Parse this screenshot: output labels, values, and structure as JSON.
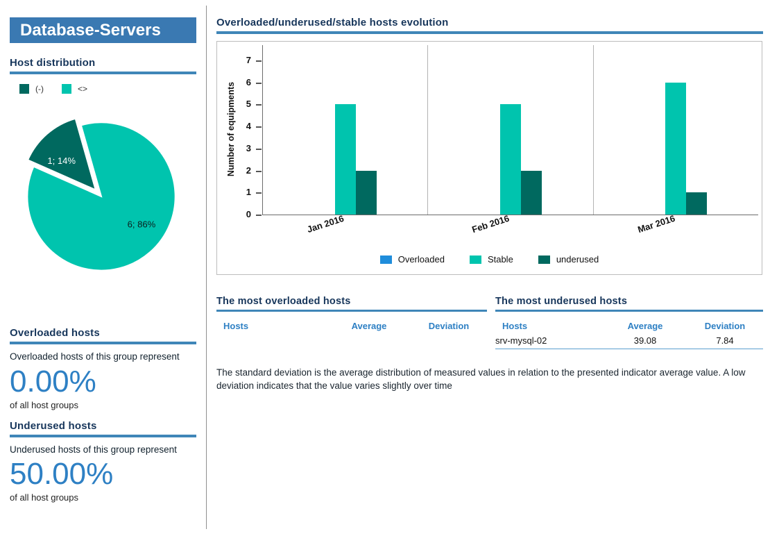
{
  "colors": {
    "teal": "#00c4ae",
    "dark_teal": "#00695f",
    "blue": "#2e80c4",
    "overloaded_blue": "#1f8ddb",
    "accent_bar": "#3f86b8",
    "heading": "#17365b",
    "title_bg": "#3a79b2"
  },
  "sidebar": {
    "title": "Database-Servers",
    "host_distribution": {
      "heading": "Host distribution",
      "legend": [
        {
          "label": "(-)"
        },
        {
          "label": "<>"
        }
      ]
    },
    "overloaded": {
      "heading": "Overloaded hosts",
      "description": "Overloaded hosts of this group represent",
      "value": "0.00%",
      "caption": "of all host groups"
    },
    "underused": {
      "heading": "Underused hosts",
      "description": "Underused hosts of this group represent",
      "value": "50.00%",
      "caption": "of all host groups"
    }
  },
  "main": {
    "evolution_heading": "Overloaded/underused/stable hosts evolution",
    "overloaded_table": {
      "title": "The most overloaded hosts",
      "headers": [
        "Hosts",
        "Average",
        "Deviation"
      ],
      "rows": []
    },
    "underused_table": {
      "title": "The most underused hosts",
      "headers": [
        "Hosts",
        "Average",
        "Deviation"
      ],
      "rows": [
        {
          "host": "srv-mysql-02",
          "average": "39.08",
          "deviation": "7.84"
        }
      ]
    },
    "note": "The standard deviation is the average distribution of measured values in relation to the presented indicator average value. A low  deviation indicates that the value varies slightly over time"
  },
  "chart_data": [
    {
      "type": "pie",
      "title": "Host distribution",
      "labels": [
        "(-)",
        "<>"
      ],
      "values": [
        1,
        6
      ],
      "percentages": [
        14,
        86
      ],
      "slice_labels": [
        "1; 14%",
        "6; 86%"
      ],
      "colors": [
        "#00695f",
        "#00c4ae"
      ],
      "legend_position": "top"
    },
    {
      "type": "bar",
      "title": "Overloaded/underused/stable hosts evolution",
      "categories": [
        "Jan 2016",
        "Feb 2016",
        "Mar 2016"
      ],
      "series": [
        {
          "name": "Overloaded",
          "color": "#1f8ddb",
          "values": [
            0,
            0,
            0
          ]
        },
        {
          "name": "Stable",
          "color": "#00c4ae",
          "values": [
            5,
            5,
            6
          ]
        },
        {
          "name": "underused",
          "color": "#00695f",
          "values": [
            2,
            2,
            1
          ]
        }
      ],
      "ylabel": "Number of equipments",
      "xlabel": "",
      "ylim": [
        0,
        7
      ],
      "yticks": [
        0,
        1,
        2,
        3,
        4,
        5,
        6,
        7
      ],
      "grid": "vertical-category-separators",
      "legend_position": "bottom"
    }
  ]
}
